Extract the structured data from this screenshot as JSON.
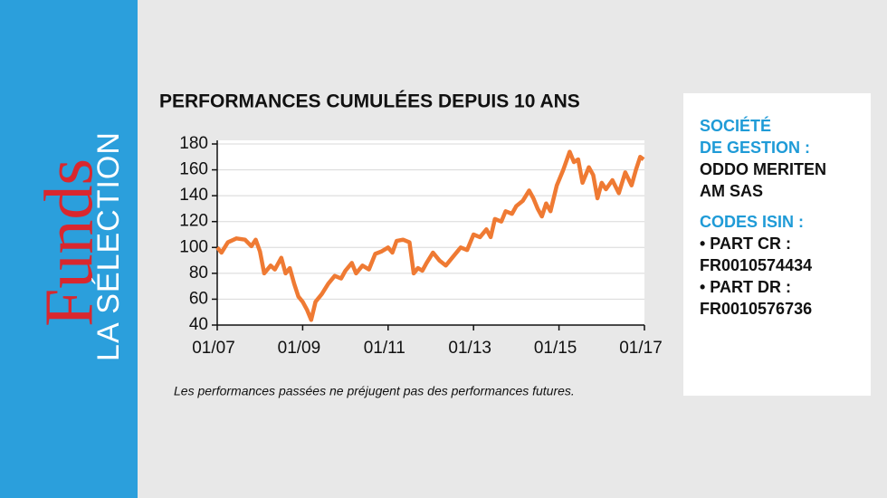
{
  "sidebar": {
    "brand": "Funds",
    "subtitle": "LA SÉLECTION"
  },
  "chart_data": {
    "type": "line",
    "title": "PERFORMANCES CUMULÉES DEPUIS 10 ANS",
    "x": [
      2007.0,
      2007.1,
      2007.25,
      2007.45,
      2007.65,
      2007.8,
      2007.9,
      2008.0,
      2008.1,
      2008.25,
      2008.35,
      2008.5,
      2008.6,
      2008.7,
      2008.8,
      2008.9,
      2009.0,
      2009.1,
      2009.2,
      2009.3,
      2009.45,
      2009.6,
      2009.75,
      2009.9,
      2010.0,
      2010.15,
      2010.25,
      2010.4,
      2010.55,
      2010.7,
      2010.85,
      2011.0,
      2011.1,
      2011.2,
      2011.35,
      2011.5,
      2011.6,
      2011.7,
      2011.8,
      2011.9,
      2012.05,
      2012.2,
      2012.35,
      2012.5,
      2012.7,
      2012.85,
      2013.0,
      2013.15,
      2013.3,
      2013.4,
      2013.5,
      2013.65,
      2013.75,
      2013.9,
      2014.0,
      2014.15,
      2014.3,
      2014.4,
      2014.5,
      2014.6,
      2014.7,
      2014.8,
      2014.95,
      2015.1,
      2015.25,
      2015.35,
      2015.45,
      2015.55,
      2015.7,
      2015.8,
      2015.9,
      2016.0,
      2016.1,
      2016.25,
      2016.4,
      2016.55,
      2016.7,
      2016.8,
      2016.9,
      2016.98
    ],
    "values": [
      100,
      96,
      104,
      107,
      106,
      101,
      106,
      97,
      80,
      86,
      83,
      92,
      80,
      84,
      72,
      62,
      58,
      52,
      44,
      58,
      64,
      72,
      78,
      76,
      82,
      88,
      80,
      86,
      83,
      95,
      97,
      100,
      96,
      105,
      106,
      104,
      80,
      84,
      82,
      88,
      96,
      90,
      86,
      92,
      100,
      98,
      110,
      108,
      114,
      108,
      122,
      120,
      128,
      126,
      132,
      136,
      144,
      138,
      130,
      124,
      134,
      128,
      148,
      160,
      174,
      166,
      168,
      150,
      162,
      156,
      138,
      150,
      145,
      152,
      142,
      158,
      148,
      160,
      170,
      168
    ],
    "color": "#ef7a33",
    "xlim": [
      2007,
      2017
    ],
    "xticks": [
      {
        "value": 2007,
        "label": "01/07"
      },
      {
        "value": 2009,
        "label": "01/09"
      },
      {
        "value": 2011,
        "label": "01/11"
      },
      {
        "value": 2013,
        "label": "01/13"
      },
      {
        "value": 2015,
        "label": "01/15"
      },
      {
        "value": 2017,
        "label": "01/17"
      }
    ],
    "ylim": [
      40,
      180
    ],
    "yticks": [
      40,
      60,
      80,
      100,
      120,
      140,
      160,
      180
    ],
    "grid": true
  },
  "footnote": "Les performances passées ne préjugent pas des performances futures.",
  "info": {
    "company_label": [
      "SOCIÉTÉ",
      "DE GESTION :"
    ],
    "company": [
      "ODDO MERITEN",
      "AM SAS"
    ],
    "isin_label": "CODES ISIN :",
    "isin": [
      "• PART CR :",
      "FR0010574434",
      "• PART DR :",
      "FR0010576736"
    ]
  }
}
